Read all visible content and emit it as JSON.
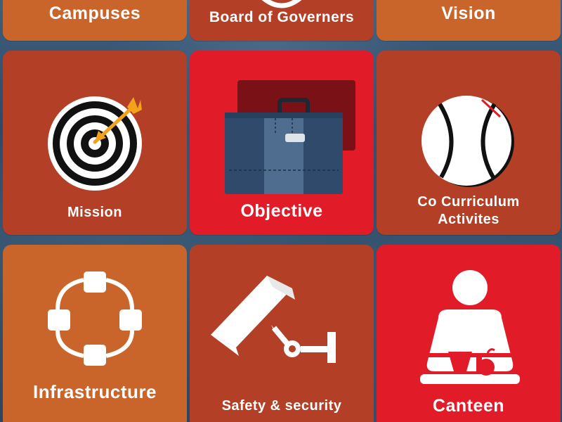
{
  "colors": {
    "orange": "#c9652a",
    "rust": "#b33f26",
    "red": "#e21b28",
    "background": "#2d4a68"
  },
  "menu": {
    "campuses": {
      "label": "Campuses"
    },
    "board": {
      "label": "Board of Governers",
      "icon": "circle-emblem-icon"
    },
    "vision": {
      "label": "Vision"
    },
    "mission": {
      "label": "Mission",
      "icon": "target-arrow-icon"
    },
    "objective": {
      "label": "Objective",
      "icon": "briefcase-icon"
    },
    "cocurriculum": {
      "label_line1": "Co Curriculum",
      "label_line2": "Activites",
      "icon": "ball-icon"
    },
    "infrastructure": {
      "label": "Infrastructure",
      "icon": "network-nodes-icon"
    },
    "safety": {
      "label": "Safety & security",
      "icon": "security-camera-icon"
    },
    "canteen": {
      "label": "Canteen",
      "icon": "canteen-server-icon"
    }
  }
}
